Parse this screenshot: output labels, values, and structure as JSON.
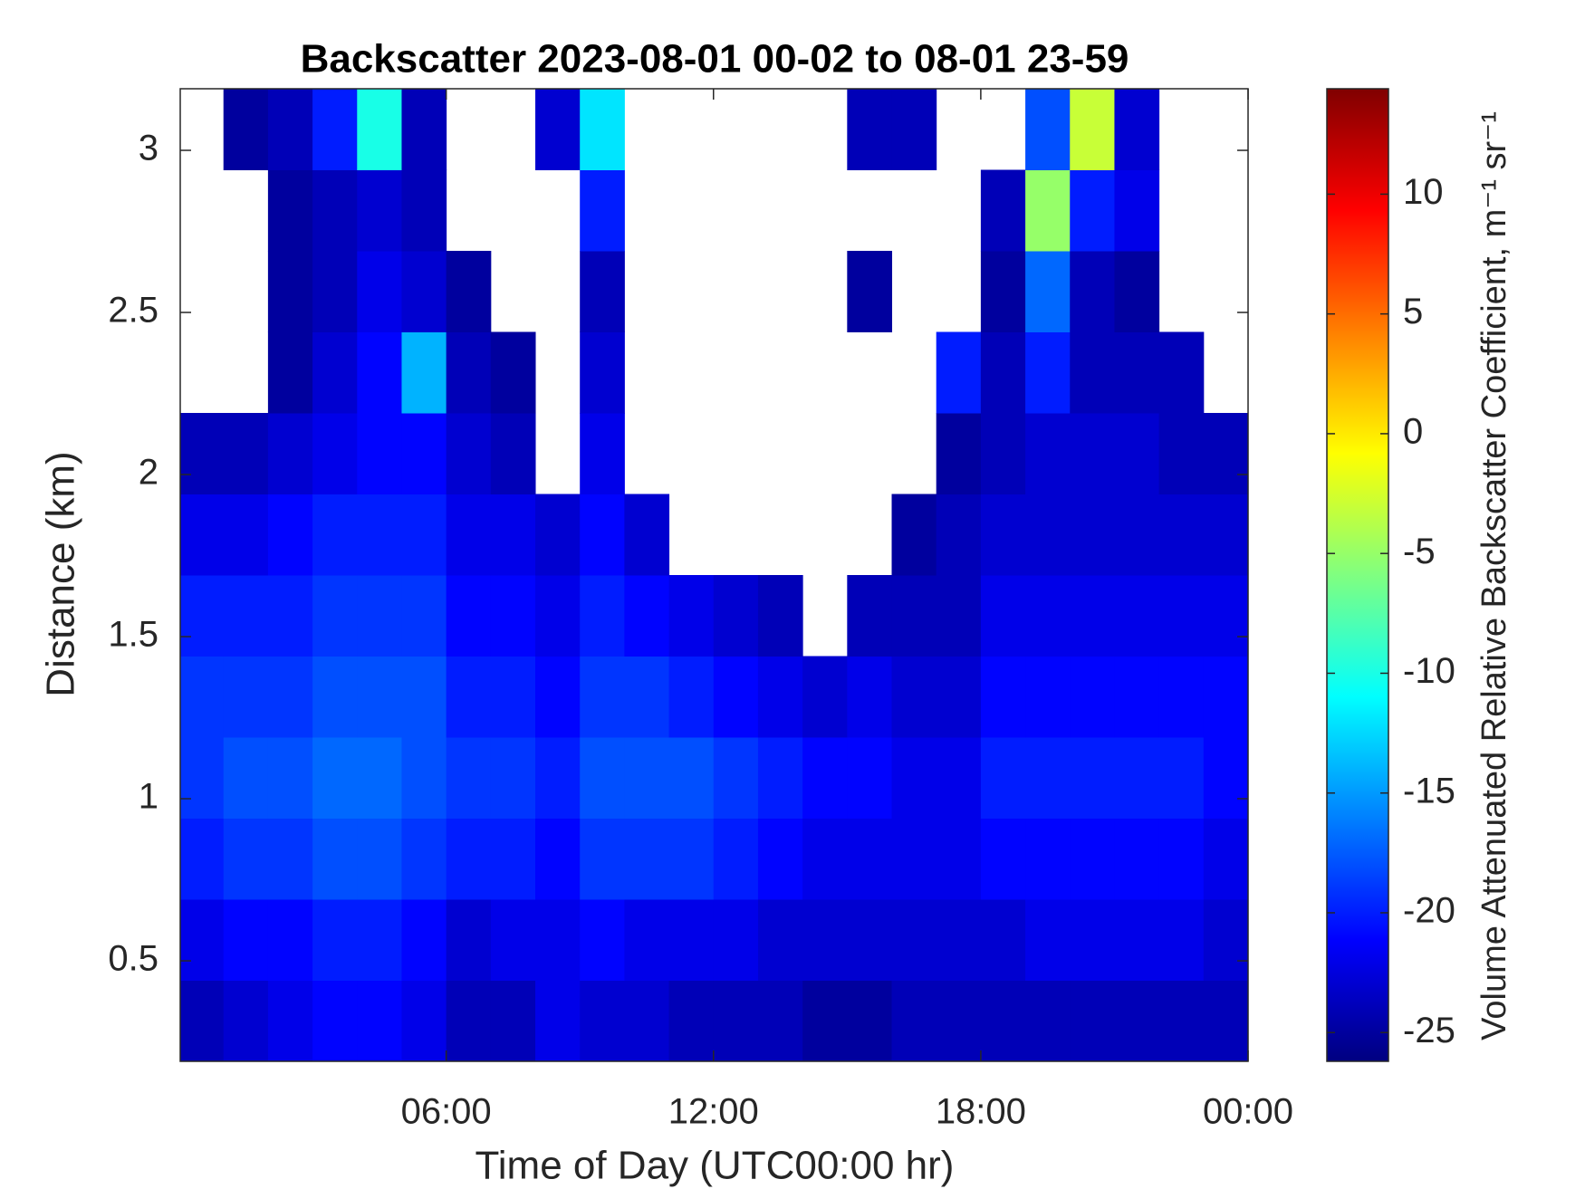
{
  "chart_data": {
    "type": "heatmap",
    "title": "Backscatter 2023-08-01 00-02 to 08-01 23-59",
    "x_label": "Time of Day (UTC00:00 hr)",
    "y_label": "Distance (km)",
    "colorbar_label": "Volume Attenuated Relative Backscatter Coefficient, m⁻¹ sr⁻¹",
    "colormap": "jet",
    "xlim": [
      0.03,
      24
    ],
    "ylim": [
      0.19,
      3.19
    ],
    "xticks": [
      {
        "value": 6,
        "label": "06:00"
      },
      {
        "value": 12,
        "label": "12:00"
      },
      {
        "value": 18,
        "label": "18:00"
      },
      {
        "value": 24,
        "label": "00:00"
      }
    ],
    "yticks": [
      0.5,
      1,
      1.5,
      2,
      2.5,
      3
    ],
    "clim": [
      -26.2,
      14.4
    ],
    "cticks": [
      -25,
      -20,
      -15,
      -10,
      -5,
      0,
      5,
      10
    ],
    "xbins": [
      0.03,
      1,
      2,
      3,
      4,
      5,
      6,
      7,
      8,
      9,
      10,
      11,
      12,
      13,
      14,
      15,
      16,
      17,
      18,
      19,
      20,
      21,
      22,
      23,
      24
    ],
    "ybins": [
      0.19,
      0.44,
      0.69,
      0.94,
      1.19,
      1.44,
      1.69,
      1.94,
      2.19,
      2.44,
      2.69,
      2.94,
      3.19
    ],
    "z": [
      [
        -24,
        -23,
        -22,
        -21,
        -21,
        -22,
        -24,
        -24,
        -22,
        -23,
        -23,
        -24,
        -24,
        -24,
        -25,
        -25,
        -24,
        -24,
        -24,
        -24,
        -24,
        -24,
        -24,
        -24
      ],
      [
        -22,
        -21,
        -21,
        -20,
        -20,
        -21,
        -23,
        -22,
        -22,
        -21,
        -22,
        -22,
        -22,
        -23,
        -23,
        -23,
        -23,
        -23,
        -23,
        -22,
        -22,
        -22,
        -22,
        -23
      ],
      [
        -20,
        -19,
        -19,
        -18,
        -18,
        -19,
        -20,
        -20,
        -21,
        -19,
        -19,
        -19,
        -20,
        -21,
        -22,
        -22,
        -22,
        -22,
        -21,
        -21,
        -21,
        -21,
        -21,
        -22
      ],
      [
        -19,
        -18,
        -18,
        -17,
        -17,
        -18,
        -19,
        -19,
        -20,
        -18,
        -18,
        -18,
        -19,
        -20,
        -21,
        -21,
        -22,
        -22,
        -20,
        -20,
        -20,
        -20,
        -20,
        -21
      ],
      [
        -19,
        -19,
        -19,
        -18,
        -18,
        -18,
        -20,
        -20,
        -21,
        -19,
        -19,
        -20,
        -21,
        -22,
        -23,
        -22,
        -23,
        -23,
        -21,
        -21,
        -21,
        -21,
        -21,
        -21
      ],
      [
        -20,
        -20,
        -20,
        -19,
        -19,
        -19,
        -21,
        -21,
        -22,
        -20,
        -21,
        -22,
        -23,
        -24,
        null,
        -24,
        -24,
        -24,
        -22,
        -22,
        -22,
        -22,
        -22,
        -22
      ],
      [
        -22,
        -22,
        -21,
        -20,
        -20,
        -20,
        -22,
        -22,
        -23,
        -21,
        -23,
        null,
        null,
        null,
        null,
        null,
        -25,
        -24,
        -23,
        -23,
        -23,
        -23,
        -23,
        -23
      ],
      [
        -24,
        -24,
        -23,
        -22,
        -21,
        -21,
        -23,
        -24,
        null,
        -22,
        null,
        null,
        null,
        null,
        null,
        null,
        null,
        -25,
        -24,
        -23,
        -23,
        -23,
        -24,
        -24
      ],
      [
        null,
        null,
        -25,
        -23,
        -21,
        -14,
        -24,
        -25,
        null,
        -23,
        null,
        null,
        null,
        null,
        null,
        null,
        null,
        -20,
        -24,
        -20,
        -24,
        -24,
        -24,
        null
      ],
      [
        null,
        null,
        -25,
        -24,
        -22,
        -23,
        -25,
        null,
        null,
        -24,
        null,
        null,
        null,
        null,
        null,
        -25,
        null,
        null,
        -25,
        -17,
        -24,
        -25,
        null,
        null
      ],
      [
        null,
        null,
        -25,
        -24,
        -23,
        -24,
        null,
        null,
        null,
        -20,
        null,
        null,
        null,
        null,
        null,
        null,
        null,
        null,
        -24,
        -5,
        -20,
        -22,
        null,
        null
      ],
      [
        null,
        -25,
        -24,
        -20,
        -10,
        -24,
        null,
        null,
        -23,
        -12,
        null,
        null,
        null,
        null,
        null,
        -24,
        -24,
        null,
        null,
        -18,
        -3,
        -23,
        null,
        null
      ]
    ]
  }
}
